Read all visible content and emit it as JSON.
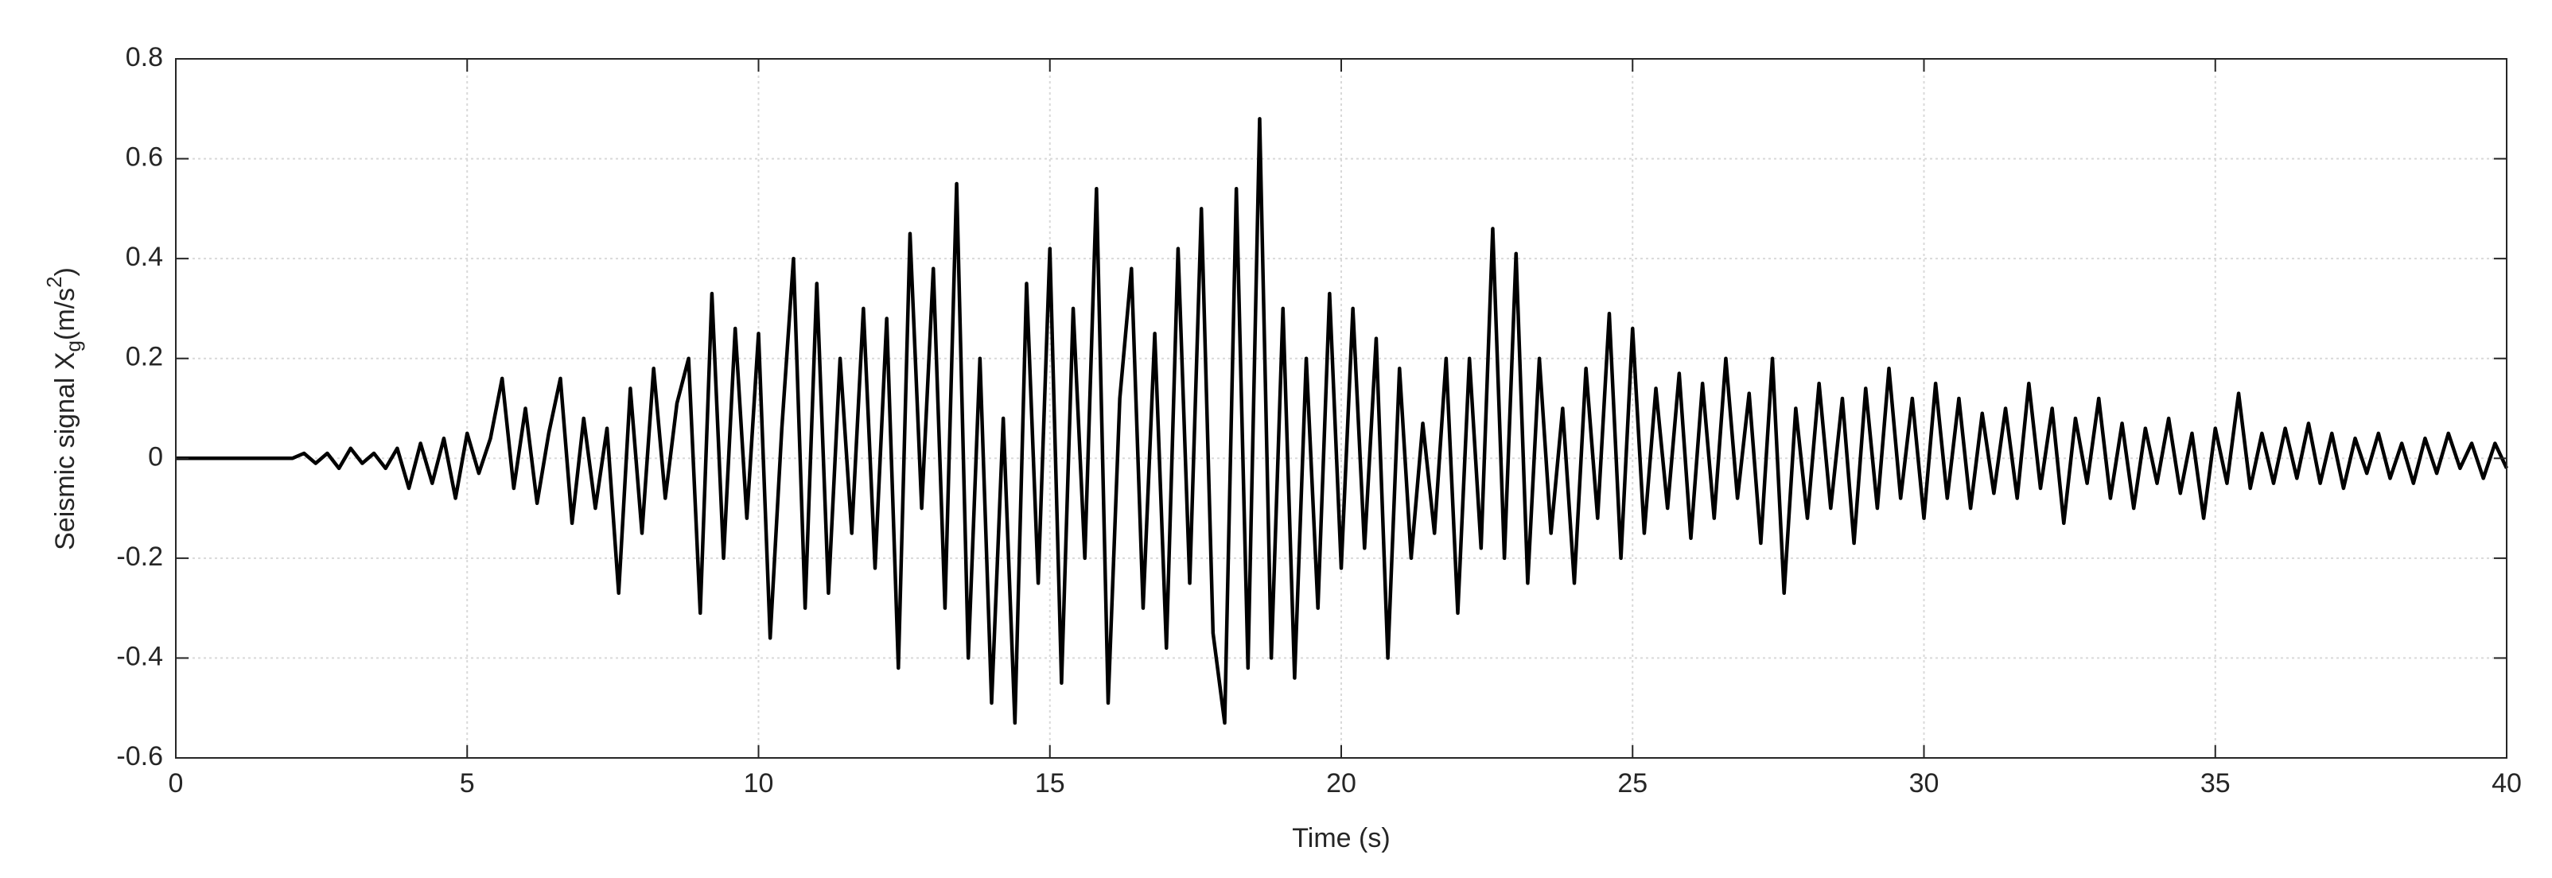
{
  "chart_data": {
    "type": "line",
    "xlabel": "Time (s)",
    "ylabel": {
      "text": "Seismic signal X",
      "sub": "g",
      "mid": "(m/s",
      "sup": "2",
      "end": ")"
    },
    "xlim": [
      0,
      40
    ],
    "ylim": [
      -0.6,
      0.8
    ],
    "xticks": [
      0,
      5,
      10,
      15,
      20,
      25,
      30,
      35,
      40
    ],
    "yticks": [
      -0.6,
      -0.4,
      -0.2,
      0,
      0.2,
      0.4,
      0.6,
      0.8
    ],
    "grid": true,
    "x": [
      0,
      0.2,
      0.4,
      0.6,
      0.8,
      1,
      1.2,
      1.4,
      1.6,
      1.8,
      2,
      2.2,
      2.4,
      2.6,
      2.8,
      3,
      3.2,
      3.4,
      3.6,
      3.8,
      4,
      4.2,
      4.4,
      4.6,
      4.8,
      5,
      5.2,
      5.4,
      5.6,
      5.8,
      6,
      6.2,
      6.4,
      6.6,
      6.8,
      7,
      7.2,
      7.4,
      7.6,
      7.8,
      8,
      8.2,
      8.4,
      8.6,
      8.8,
      9,
      9.2,
      9.4,
      9.6,
      9.8,
      10,
      10.2,
      10.4,
      10.6,
      10.8,
      11,
      11.2,
      11.4,
      11.6,
      11.8,
      12,
      12.2,
      12.4,
      12.6,
      12.8,
      13,
      13.2,
      13.4,
      13.6,
      13.8,
      14,
      14.2,
      14.4,
      14.6,
      14.8,
      15,
      15.2,
      15.4,
      15.6,
      15.8,
      16,
      16.2,
      16.4,
      16.6,
      16.8,
      17,
      17.2,
      17.4,
      17.6,
      17.8,
      18,
      18.2,
      18.4,
      18.6,
      18.8,
      19,
      19.2,
      19.4,
      19.6,
      19.8,
      20,
      20.2,
      20.4,
      20.6,
      20.8,
      21,
      21.2,
      21.4,
      21.6,
      21.8,
      22,
      22.2,
      22.4,
      22.6,
      22.8,
      23,
      23.2,
      23.4,
      23.6,
      23.8,
      24,
      24.2,
      24.4,
      24.6,
      24.8,
      25,
      25.2,
      25.4,
      25.6,
      25.8,
      26,
      26.2,
      26.4,
      26.6,
      26.8,
      27,
      27.2,
      27.4,
      27.6,
      27.8,
      28,
      28.2,
      28.4,
      28.6,
      28.8,
      29,
      29.2,
      29.4,
      29.6,
      29.8,
      30,
      30.2,
      30.4,
      30.6,
      30.8,
      31,
      31.2,
      31.4,
      31.6,
      31.8,
      32,
      32.2,
      32.4,
      32.6,
      32.8,
      33,
      33.2,
      33.4,
      33.6,
      33.8,
      34,
      34.2,
      34.4,
      34.6,
      34.8,
      35,
      35.2,
      35.4,
      35.6,
      35.8,
      36,
      36.2,
      36.4,
      36.6,
      36.8,
      37,
      37.2,
      37.4,
      37.6,
      37.8,
      38,
      38.2,
      38.4,
      38.6,
      38.8,
      39,
      39.2,
      39.4,
      39.6,
      39.8,
      40
    ],
    "series": [
      {
        "color": "#000000",
        "values": [
          0,
          0,
          0,
          0,
          0,
          0,
          0,
          0,
          0,
          0,
          0,
          0.01,
          -0.01,
          0.01,
          -0.02,
          0.02,
          -0.01,
          0.01,
          -0.02,
          0.02,
          -0.06,
          0.03,
          -0.05,
          0.04,
          -0.08,
          0.05,
          -0.03,
          0.04,
          0.16,
          -0.06,
          0.1,
          -0.09,
          0.05,
          0.16,
          -0.13,
          0.08,
          -0.1,
          0.06,
          -0.27,
          0.14,
          -0.15,
          0.18,
          -0.08,
          0.11,
          0.2,
          -0.31,
          0.33,
          -0.2,
          0.26,
          -0.12,
          0.25,
          -0.36,
          0.06,
          0.4,
          -0.3,
          0.35,
          -0.27,
          0.2,
          -0.15,
          0.3,
          -0.22,
          0.28,
          -0.42,
          0.45,
          -0.1,
          0.38,
          -0.3,
          0.55,
          -0.4,
          0.2,
          -0.49,
          0.08,
          -0.53,
          0.35,
          -0.25,
          0.42,
          -0.45,
          0.3,
          -0.2,
          0.54,
          -0.49,
          0.12,
          0.38,
          -0.3,
          0.25,
          -0.38,
          0.42,
          -0.25,
          0.5,
          -0.35,
          -0.53,
          0.54,
          -0.42,
          0.68,
          -0.4,
          0.3,
          -0.44,
          0.2,
          -0.3,
          0.33,
          -0.22,
          0.3,
          -0.18,
          0.24,
          -0.4,
          0.18,
          -0.2,
          0.07,
          -0.15,
          0.2,
          -0.31,
          0.2,
          -0.18,
          0.46,
          -0.2,
          0.41,
          -0.25,
          0.2,
          -0.15,
          0.1,
          -0.25,
          0.18,
          -0.12,
          0.29,
          -0.2,
          0.26,
          -0.15,
          0.14,
          -0.1,
          0.17,
          -0.16,
          0.15,
          -0.12,
          0.2,
          -0.08,
          0.13,
          -0.17,
          0.2,
          -0.27,
          0.1,
          -0.12,
          0.15,
          -0.1,
          0.12,
          -0.17,
          0.14,
          -0.1,
          0.18,
          -0.08,
          0.12,
          -0.12,
          0.15,
          -0.08,
          0.12,
          -0.1,
          0.09,
          -0.07,
          0.1,
          -0.08,
          0.15,
          -0.06,
          0.1,
          -0.13,
          0.08,
          -0.05,
          0.12,
          -0.08,
          0.07,
          -0.1,
          0.06,
          -0.05,
          0.08,
          -0.07,
          0.05,
          -0.12,
          0.06,
          -0.05,
          0.13,
          -0.06,
          0.05,
          -0.05,
          0.06,
          -0.04,
          0.07,
          -0.05,
          0.05,
          -0.06,
          0.04,
          -0.03,
          0.05,
          -0.04,
          0.03,
          -0.05,
          0.04,
          -0.03,
          0.05,
          -0.02,
          0.03,
          -0.04,
          0.03,
          -0.02
        ]
      }
    ]
  }
}
